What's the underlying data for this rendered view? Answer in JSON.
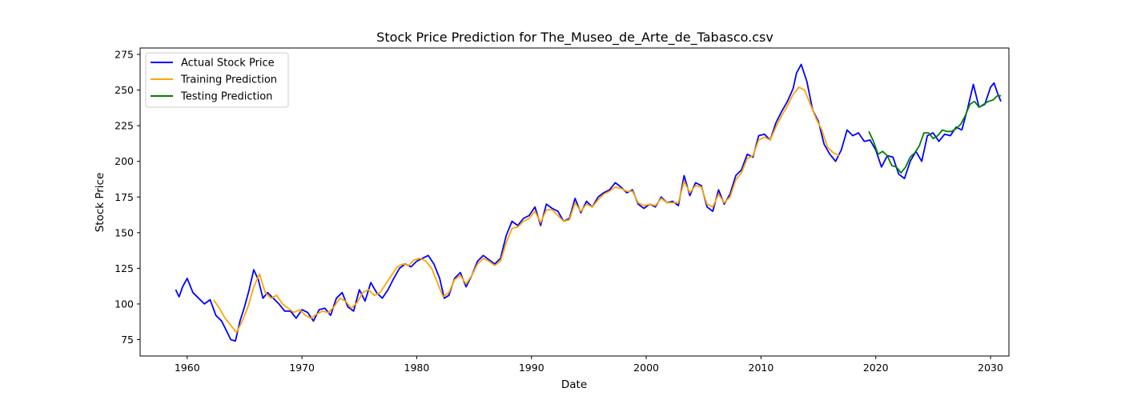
{
  "chart_data": {
    "type": "line",
    "title": "Stock Price Prediction for The_Museo_de_Arte_de_Tabasco.csv",
    "xlabel": "Date",
    "ylabel": "Stock Price",
    "xlim": [
      1955.9,
      2031.6
    ],
    "ylim": [
      63.5,
      279.5
    ],
    "xticks": [
      1960,
      1970,
      1980,
      1990,
      2000,
      2010,
      2020,
      2030
    ],
    "yticks": [
      75,
      100,
      125,
      150,
      175,
      200,
      225,
      250,
      275
    ],
    "grid": false,
    "legend_position": "top-left",
    "series": [
      {
        "name": "Actual Stock Price",
        "color": "#0000ff",
        "x": [
          1959.0,
          1959.3,
          1959.6,
          1960.0,
          1960.5,
          1961.0,
          1961.5,
          1962.0,
          1962.5,
          1963.0,
          1963.5,
          1963.8,
          1964.2,
          1964.6,
          1965.0,
          1965.4,
          1965.8,
          1966.2,
          1966.6,
          1967.0,
          1967.5,
          1968.0,
          1968.5,
          1969.0,
          1969.5,
          1970.0,
          1970.5,
          1971.0,
          1971.5,
          1972.0,
          1972.5,
          1973.0,
          1973.5,
          1974.0,
          1974.5,
          1975.0,
          1975.5,
          1976.0,
          1976.5,
          1977.0,
          1977.5,
          1978.0,
          1978.5,
          1979.0,
          1979.5,
          1980.0,
          1980.5,
          1981.0,
          1981.5,
          1982.0,
          1982.4,
          1982.8,
          1983.3,
          1983.8,
          1984.3,
          1984.8,
          1985.3,
          1985.8,
          1986.3,
          1986.8,
          1987.3,
          1987.8,
          1988.3,
          1988.8,
          1989.3,
          1989.8,
          1990.3,
          1990.8,
          1991.3,
          1991.8,
          1992.3,
          1992.8,
          1993.3,
          1993.8,
          1994.3,
          1994.8,
          1995.3,
          1995.8,
          1996.3,
          1996.8,
          1997.3,
          1997.8,
          1998.3,
          1998.8,
          1999.3,
          1999.8,
          2000.3,
          2000.8,
          2001.3,
          2001.8,
          2002.3,
          2002.8,
          2003.3,
          2003.8,
          2004.3,
          2004.8,
          2005.3,
          2005.8,
          2006.3,
          2006.8,
          2007.3,
          2007.8,
          2008.3,
          2008.8,
          2009.3,
          2009.8,
          2010.3,
          2010.8,
          2011.3,
          2011.8,
          2012.3,
          2012.8,
          2013.1,
          2013.5,
          2014.0,
          2014.5,
          2015.0,
          2015.5,
          2016.0,
          2016.5,
          2017.0,
          2017.5,
          2018.0,
          2018.5,
          2019.0,
          2019.5,
          2020.0,
          2020.5,
          2021.0,
          2021.5,
          2022.0,
          2022.5,
          2023.0,
          2023.5,
          2024.0,
          2024.5,
          2025.0,
          2025.5,
          2026.0,
          2026.5,
          2027.0,
          2027.5,
          2028.0,
          2028.5,
          2029.0,
          2029.5,
          2030.0,
          2030.3,
          2030.6,
          2030.9
        ],
        "values": [
          110,
          105,
          112,
          118,
          108,
          104,
          100,
          103,
          92,
          88,
          80,
          75,
          74,
          88,
          98,
          110,
          124,
          117,
          104,
          108,
          104,
          100,
          95,
          95,
          90,
          96,
          94,
          88,
          96,
          97,
          92,
          104,
          108,
          98,
          95,
          110,
          102,
          115,
          108,
          104,
          110,
          118,
          125,
          128,
          126,
          130,
          132,
          134,
          128,
          118,
          104,
          106,
          118,
          122,
          112,
          120,
          130,
          134,
          131,
          128,
          132,
          148,
          158,
          155,
          160,
          162,
          168,
          155,
          170,
          167,
          165,
          158,
          160,
          174,
          164,
          172,
          168,
          175,
          178,
          180,
          185,
          182,
          178,
          180,
          170,
          167,
          170,
          168,
          175,
          171,
          172,
          169,
          190,
          176,
          185,
          183,
          168,
          165,
          180,
          170,
          177,
          190,
          194,
          205,
          203,
          218,
          219,
          215,
          227,
          235,
          242,
          251,
          262,
          268,
          256,
          236,
          228,
          212,
          205,
          200,
          208,
          222,
          218,
          220,
          214,
          215,
          208,
          196,
          204,
          203,
          191,
          188,
          200,
          207,
          200,
          218,
          220,
          214,
          219,
          218,
          224,
          222,
          237,
          254,
          238,
          240,
          252,
          255,
          248,
          242
        ]
      },
      {
        "name": "Training Prediction",
        "color": "#ffa500",
        "x": [
          1962.3,
          1962.8,
          1963.3,
          1963.8,
          1964.3,
          1964.8,
          1965.3,
          1965.8,
          1966.3,
          1966.8,
          1967.3,
          1967.8,
          1968.3,
          1968.8,
          1969.3,
          1969.8,
          1970.3,
          1970.8,
          1971.3,
          1971.8,
          1972.3,
          1972.8,
          1973.3,
          1973.8,
          1974.3,
          1974.8,
          1975.3,
          1975.8,
          1976.3,
          1976.8,
          1977.3,
          1977.8,
          1978.3,
          1978.8,
          1979.3,
          1979.8,
          1980.3,
          1980.8,
          1981.3,
          1981.8,
          1982.3,
          1982.8,
          1983.3,
          1983.8,
          1984.3,
          1984.8,
          1985.3,
          1985.8,
          1986.3,
          1986.8,
          1987.3,
          1987.8,
          1988.3,
          1988.8,
          1989.3,
          1989.8,
          1990.3,
          1990.8,
          1991.3,
          1991.8,
          1992.3,
          1992.8,
          1993.3,
          1993.8,
          1994.3,
          1994.8,
          1995.3,
          1995.8,
          1996.3,
          1996.8,
          1997.3,
          1997.8,
          1998.3,
          1998.8,
          1999.3,
          1999.8,
          2000.3,
          2000.8,
          2001.3,
          2001.8,
          2002.3,
          2002.8,
          2003.3,
          2003.8,
          2004.3,
          2004.8,
          2005.3,
          2005.8,
          2006.3,
          2006.8,
          2007.3,
          2007.8,
          2008.3,
          2008.8,
          2009.3,
          2009.8,
          2010.3,
          2010.8,
          2011.3,
          2011.8,
          2012.3,
          2012.8,
          2013.3,
          2013.8,
          2014.3,
          2014.8,
          2015.3,
          2015.8,
          2016.3,
          2016.8
        ],
        "values": [
          103,
          97,
          90,
          85,
          80,
          88,
          98,
          112,
          121,
          108,
          104,
          106,
          100,
          97,
          94,
          96,
          92,
          90,
          93,
          95,
          94,
          98,
          104,
          102,
          97,
          101,
          108,
          110,
          106,
          108,
          114,
          120,
          126,
          128,
          127,
          131,
          132,
          130,
          125,
          115,
          105,
          108,
          117,
          120,
          114,
          120,
          128,
          132,
          130,
          127,
          130,
          143,
          153,
          154,
          158,
          160,
          165,
          157,
          166,
          166,
          162,
          158,
          159,
          171,
          165,
          170,
          168,
          173,
          177,
          179,
          182,
          181,
          179,
          179,
          171,
          169,
          170,
          169,
          174,
          171,
          171,
          171,
          186,
          178,
          183,
          182,
          170,
          168,
          177,
          171,
          175,
          187,
          192,
          202,
          204,
          215,
          217,
          215,
          224,
          232,
          239,
          247,
          252,
          250,
          240,
          230,
          222,
          210,
          206,
          204
        ]
      },
      {
        "name": "Testing Prediction",
        "color": "#008000",
        "x": [
          2019.4,
          2019.8,
          2020.2,
          2020.6,
          2021.0,
          2021.4,
          2021.8,
          2022.2,
          2022.6,
          2023.0,
          2023.4,
          2023.8,
          2024.2,
          2024.6,
          2025.0,
          2025.4,
          2025.8,
          2026.2,
          2026.6,
          2027.0,
          2027.4,
          2027.8,
          2028.2,
          2028.6,
          2029.0,
          2029.4,
          2029.8,
          2030.2,
          2030.6,
          2030.9
        ],
        "values": [
          221,
          214,
          205,
          207,
          204,
          197,
          196,
          192,
          196,
          203,
          206,
          211,
          220,
          220,
          216,
          218,
          222,
          221,
          221,
          223,
          226,
          232,
          240,
          242,
          238,
          240,
          242,
          243,
          246,
          246
        ]
      }
    ]
  }
}
